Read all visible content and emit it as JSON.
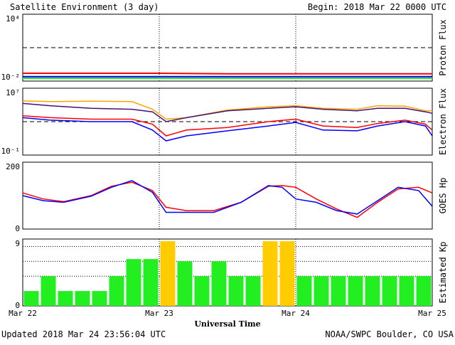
{
  "header": {
    "title": "Satellite Environment (3 day)",
    "begin": "Begin:  2018 Mar 22 0000 UTC"
  },
  "footer": {
    "updated": "Updated 2018 Mar 24 23:56:04 UTC",
    "credit": "NOAA/SWPC Boulder, CO USA"
  },
  "x_axis": {
    "label": "Universal Time",
    "ticks": [
      "Mar 22",
      "Mar 23",
      "Mar 24",
      "Mar 25"
    ]
  },
  "colors": {
    "red": "#ff0000",
    "blue": "#0000ff",
    "green": "#22ee22",
    "orange": "#ffa500",
    "purple": "#441177",
    "kp_green": "#22ee22",
    "kp_yellow": "#ffcc00"
  },
  "chart_data": [
    {
      "type": "line",
      "name": "proton-flux",
      "ylabel": "Proton Flux",
      "yscale": "log",
      "ylim": [
        0.01,
        10000
      ],
      "y_ticks": [
        "10⁴",
        "10⁻²"
      ],
      "threshold": 10,
      "x_range_days": [
        0,
        3
      ],
      "series": [
        {
          "color": "red",
          "x": [
            0,
            0.5,
            1,
            1.5,
            2,
            2.5,
            3
          ],
          "y": [
            0.05,
            0.05,
            0.05,
            0.045,
            0.045,
            0.045,
            0.045
          ]
        },
        {
          "color": "blue",
          "x": [
            0,
            0.5,
            1,
            1.5,
            2,
            2.5,
            3
          ],
          "y": [
            0.025,
            0.025,
            0.025,
            0.025,
            0.025,
            0.025,
            0.025
          ]
        },
        {
          "color": "green",
          "x": [
            0,
            0.5,
            1,
            1.5,
            2,
            2.5,
            3
          ],
          "y": [
            0.018,
            0.018,
            0.018,
            0.018,
            0.018,
            0.018,
            0.018
          ]
        }
      ]
    },
    {
      "type": "line",
      "name": "electron-flux",
      "ylabel": "Electron Flux",
      "yscale": "log",
      "ylim": [
        0.1,
        10000000
      ],
      "y_ticks": [
        "10⁷",
        "10⁻¹"
      ],
      "threshold": 1000,
      "x_range_days": [
        0,
        3
      ],
      "series": [
        {
          "color": "orange",
          "x": [
            0,
            0.2,
            0.5,
            0.8,
            0.95,
            1.05,
            1.2,
            1.5,
            1.8,
            2.0,
            2.2,
            2.45,
            2.6,
            2.8,
            2.95,
            3.0
          ],
          "y": [
            300000,
            250000,
            280000,
            250000,
            30000,
            2000,
            3000,
            25000,
            60000,
            80000,
            40000,
            30000,
            80000,
            70000,
            20000,
            20000
          ]
        },
        {
          "color": "purple",
          "x": [
            0,
            0.2,
            0.5,
            0.8,
            0.95,
            1.05,
            1.2,
            1.5,
            1.8,
            2.0,
            2.2,
            2.45,
            2.6,
            2.8,
            2.95,
            3.0
          ],
          "y": [
            150000,
            80000,
            40000,
            30000,
            15000,
            1000,
            3000,
            20000,
            40000,
            60000,
            30000,
            20000,
            40000,
            40000,
            15000,
            10000
          ]
        },
        {
          "color": "red",
          "x": [
            0,
            0.2,
            0.5,
            0.8,
            0.95,
            1.05,
            1.2,
            1.5,
            1.8,
            2.0,
            2.2,
            2.45,
            2.6,
            2.8,
            2.95,
            3.0
          ],
          "y": [
            5000,
            3000,
            2000,
            2000,
            500,
            20,
            100,
            200,
            1000,
            2000,
            300,
            200,
            600,
            1500,
            500,
            100
          ]
        },
        {
          "color": "blue",
          "x": [
            0,
            0.2,
            0.5,
            0.8,
            0.95,
            1.05,
            1.2,
            1.5,
            1.8,
            2.0,
            2.2,
            2.45,
            2.6,
            2.8,
            2.95,
            3.0
          ],
          "y": [
            3000,
            1500,
            1000,
            1000,
            100,
            5,
            20,
            80,
            300,
            800,
            100,
            80,
            300,
            1000,
            300,
            20
          ]
        }
      ]
    },
    {
      "type": "line",
      "name": "goes-hp",
      "ylabel": "GOES Hp",
      "ylim": [
        0,
        200
      ],
      "y_ticks": [
        "200",
        "0"
      ],
      "x_range_days": [
        0,
        3
      ],
      "series": [
        {
          "color": "red",
          "x": [
            0,
            0.15,
            0.3,
            0.5,
            0.65,
            0.8,
            0.95,
            1.05,
            1.2,
            1.4,
            1.6,
            1.8,
            1.9,
            2.0,
            2.15,
            2.3,
            2.45,
            2.6,
            2.75,
            2.9,
            3.0
          ],
          "y": [
            108,
            90,
            82,
            100,
            128,
            140,
            115,
            65,
            55,
            55,
            80,
            128,
            130,
            125,
            90,
            60,
            35,
            80,
            120,
            125,
            108
          ]
        },
        {
          "color": "blue",
          "x": [
            0,
            0.15,
            0.3,
            0.5,
            0.65,
            0.8,
            0.95,
            1.05,
            1.2,
            1.4,
            1.6,
            1.8,
            1.9,
            2.0,
            2.15,
            2.3,
            2.45,
            2.6,
            2.75,
            2.9,
            3.0
          ],
          "y": [
            100,
            85,
            80,
            98,
            125,
            145,
            110,
            50,
            50,
            50,
            80,
            130,
            125,
            90,
            80,
            55,
            45,
            85,
            125,
            115,
            68
          ]
        }
      ]
    },
    {
      "type": "bar",
      "name": "estimated-kp",
      "ylabel": "Estimated Kp",
      "ylim": [
        0,
        9
      ],
      "y_ticks": [
        "9",
        "0"
      ],
      "gridlines": [
        4,
        6,
        8
      ],
      "x_range_days": [
        0,
        3
      ],
      "values": [
        2,
        4,
        2,
        2,
        2,
        4,
        6.3,
        6.3,
        8.7,
        6,
        4,
        6,
        4,
        4,
        8.7,
        8.7,
        4,
        4,
        4,
        4,
        4,
        4,
        4,
        4
      ],
      "bar_colors": [
        "kp_green",
        "kp_green",
        "kp_green",
        "kp_green",
        "kp_green",
        "kp_green",
        "kp_green",
        "kp_green",
        "kp_yellow",
        "kp_green",
        "kp_green",
        "kp_green",
        "kp_green",
        "kp_green",
        "kp_yellow",
        "kp_yellow",
        "kp_green",
        "kp_green",
        "kp_green",
        "kp_green",
        "kp_green",
        "kp_green",
        "kp_green",
        "kp_green"
      ]
    }
  ]
}
